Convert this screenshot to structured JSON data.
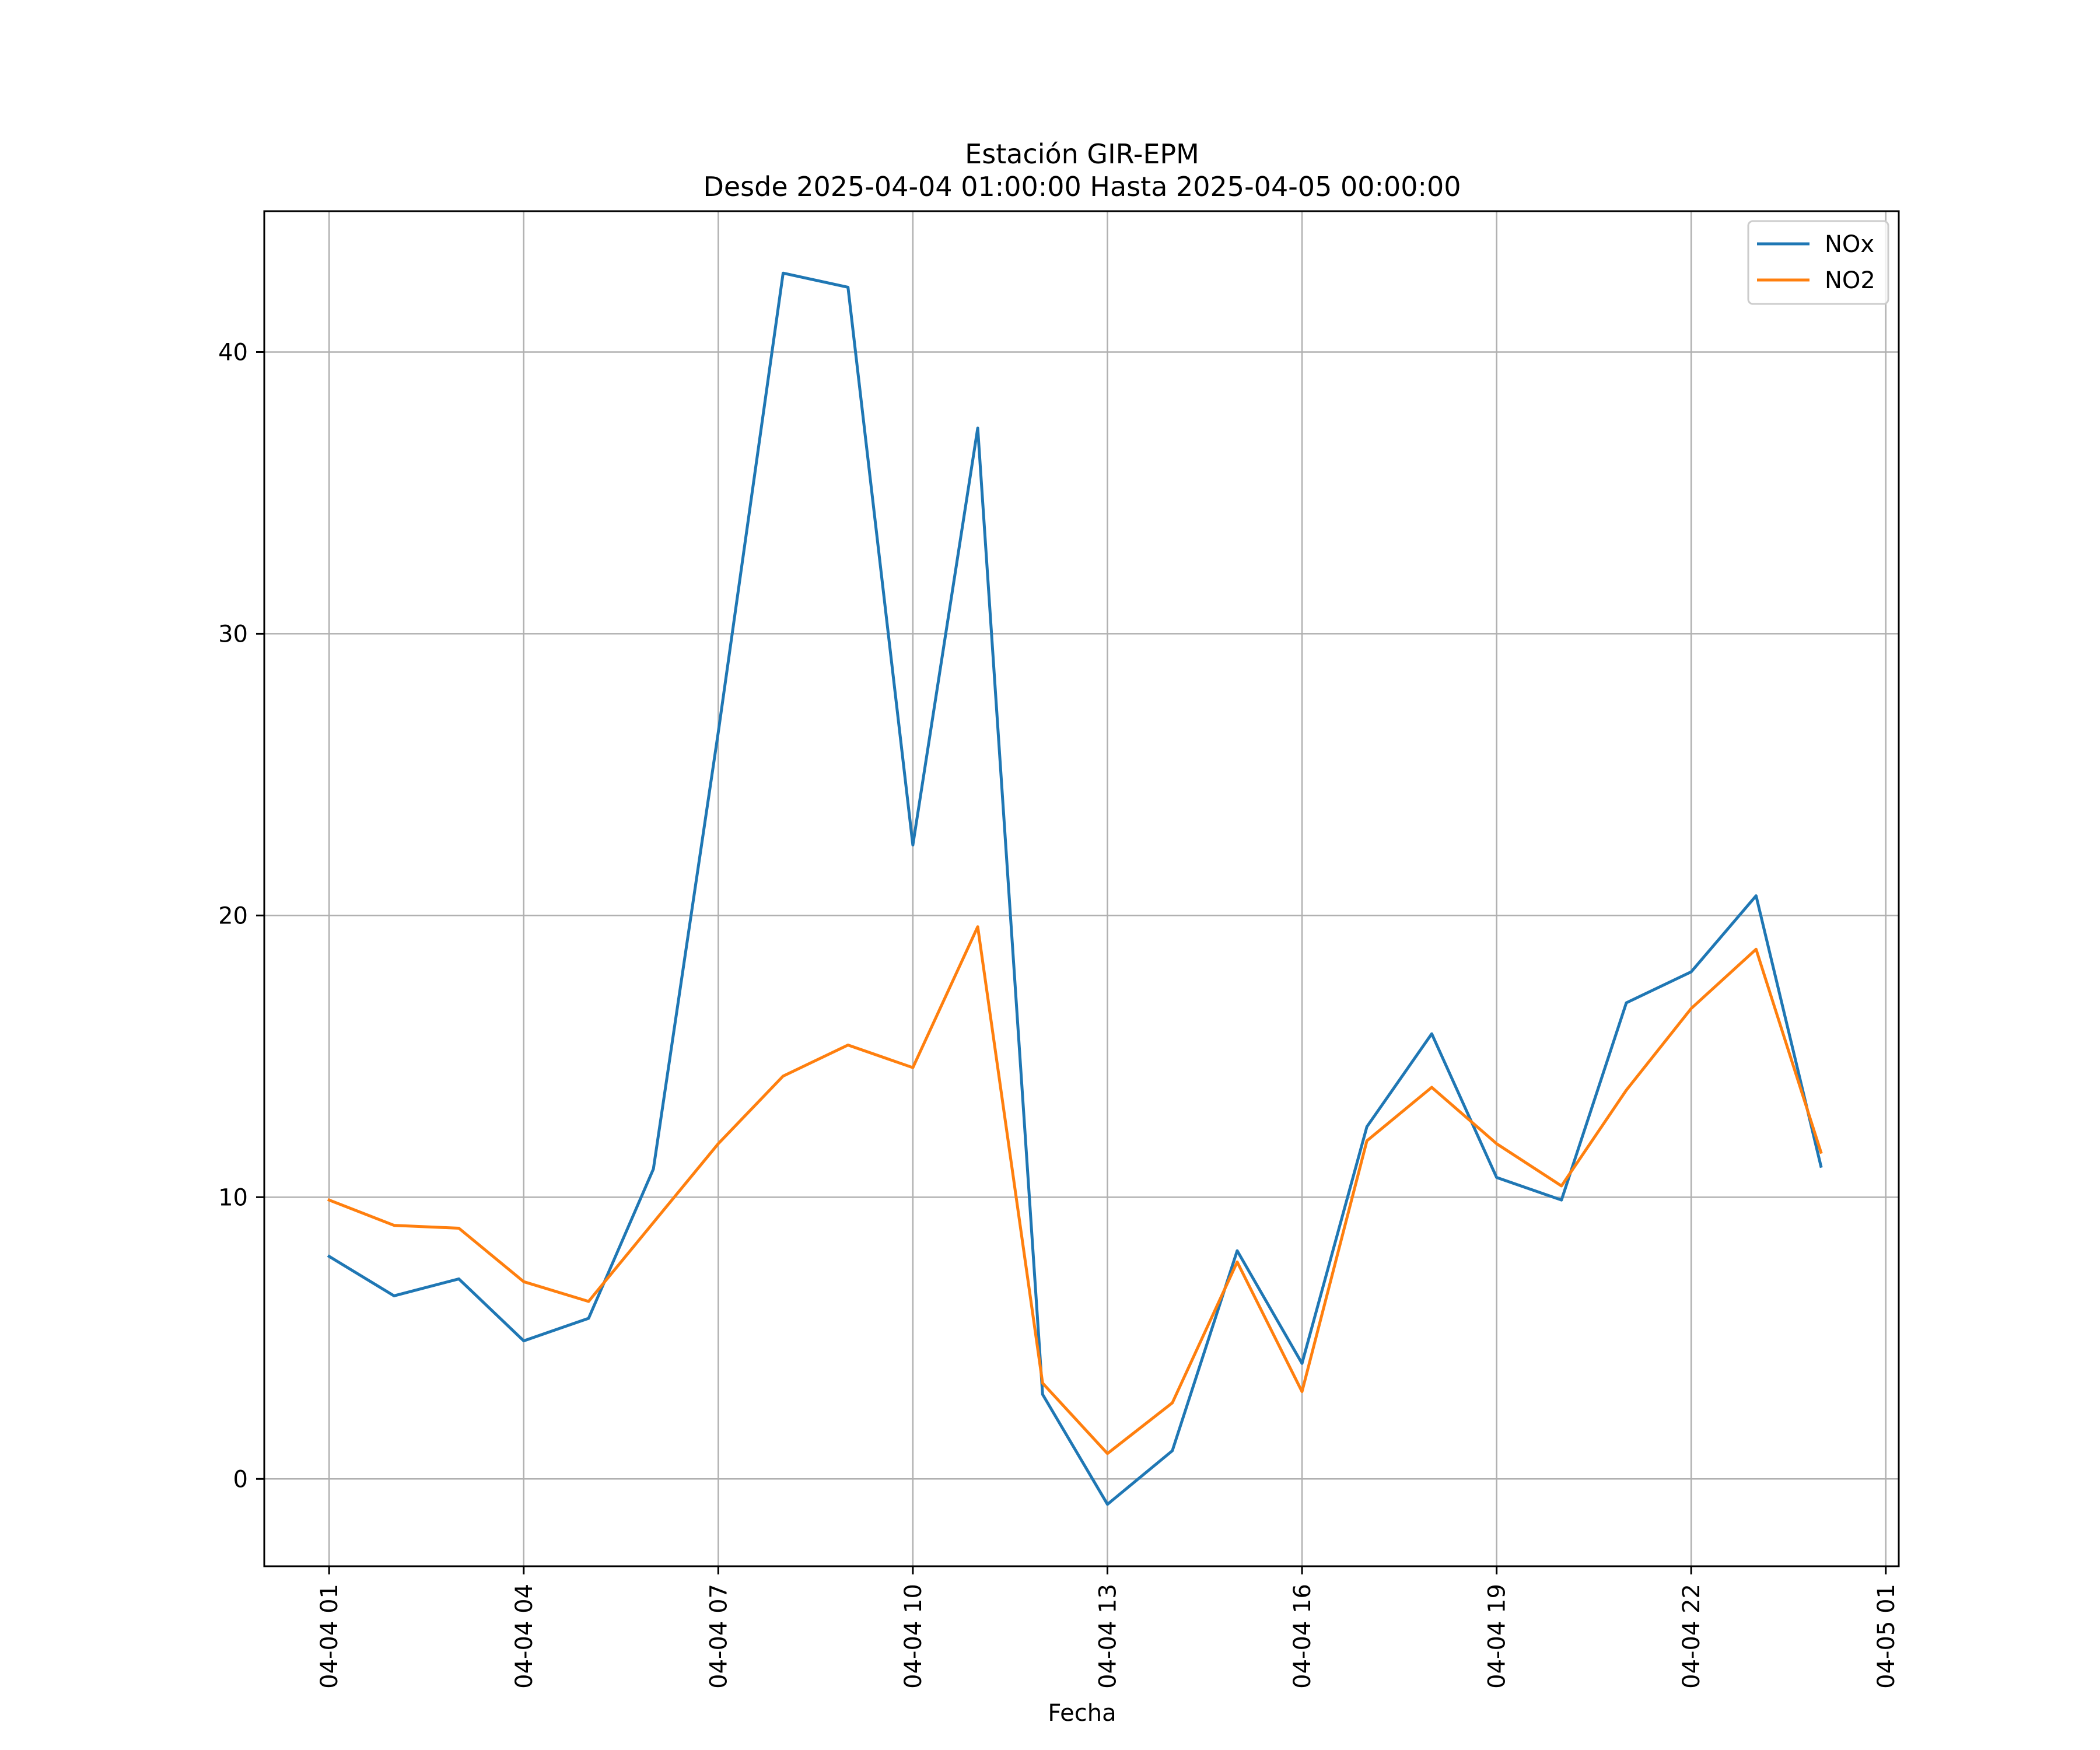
{
  "chart_data": {
    "type": "line",
    "title": "Estación GIR-EPM",
    "subtitle": "Desde 2025-04-04 01:00:00 Hasta 2025-04-05 00:00:00",
    "xlabel": "Fecha",
    "ylabel": "",
    "x": [
      "2025-04-04 01:00",
      "2025-04-04 02:00",
      "2025-04-04 03:00",
      "2025-04-04 04:00",
      "2025-04-04 05:00",
      "2025-04-04 06:00",
      "2025-04-04 07:00",
      "2025-04-04 08:00",
      "2025-04-04 09:00",
      "2025-04-04 10:00",
      "2025-04-04 11:00",
      "2025-04-04 12:00",
      "2025-04-04 13:00",
      "2025-04-04 14:00",
      "2025-04-04 15:00",
      "2025-04-04 16:00",
      "2025-04-04 17:00",
      "2025-04-04 18:00",
      "2025-04-04 19:00",
      "2025-04-04 20:00",
      "2025-04-04 21:00",
      "2025-04-04 22:00",
      "2025-04-04 23:00",
      "2025-04-05 00:00"
    ],
    "series": [
      {
        "name": "NOx",
        "color": "#1f77b4",
        "values": [
          7.9,
          6.5,
          7.1,
          4.9,
          5.7,
          11.0,
          26.5,
          42.8,
          42.3,
          22.5,
          37.3,
          3.0,
          -0.9,
          1.0,
          8.1,
          4.1,
          12.5,
          15.8,
          10.7,
          9.9,
          16.9,
          18.0,
          20.7,
          11.1
        ]
      },
      {
        "name": "NO2",
        "color": "#ff7f0e",
        "values": [
          9.9,
          9.0,
          8.9,
          7.0,
          6.3,
          9.1,
          11.9,
          14.3,
          15.4,
          14.6,
          19.6,
          3.4,
          0.9,
          2.7,
          7.7,
          3.1,
          12.0,
          13.9,
          11.9,
          10.4,
          13.8,
          16.7,
          18.8,
          11.6
        ]
      }
    ],
    "xlim": [
      "2025-04-04 00:00",
      "2025-04-05 01:12"
    ],
    "ylim": [
      -3.1,
      45.0
    ],
    "xticks": [
      "2025-04-04 01:00",
      "2025-04-04 04:00",
      "2025-04-04 07:00",
      "2025-04-04 10:00",
      "2025-04-04 13:00",
      "2025-04-04 16:00",
      "2025-04-04 19:00",
      "2025-04-04 22:00",
      "2025-04-05 01:00"
    ],
    "xtick_labels": [
      "04-04 01",
      "04-04 04",
      "04-04 07",
      "04-04 10",
      "04-04 13",
      "04-04 16",
      "04-04 19",
      "04-04 22",
      "04-05 01"
    ],
    "yticks": [
      0,
      10,
      20,
      30,
      40
    ],
    "ytick_labels": [
      "0",
      "10",
      "20",
      "30",
      "40"
    ],
    "grid": true,
    "legend": "top-right"
  }
}
